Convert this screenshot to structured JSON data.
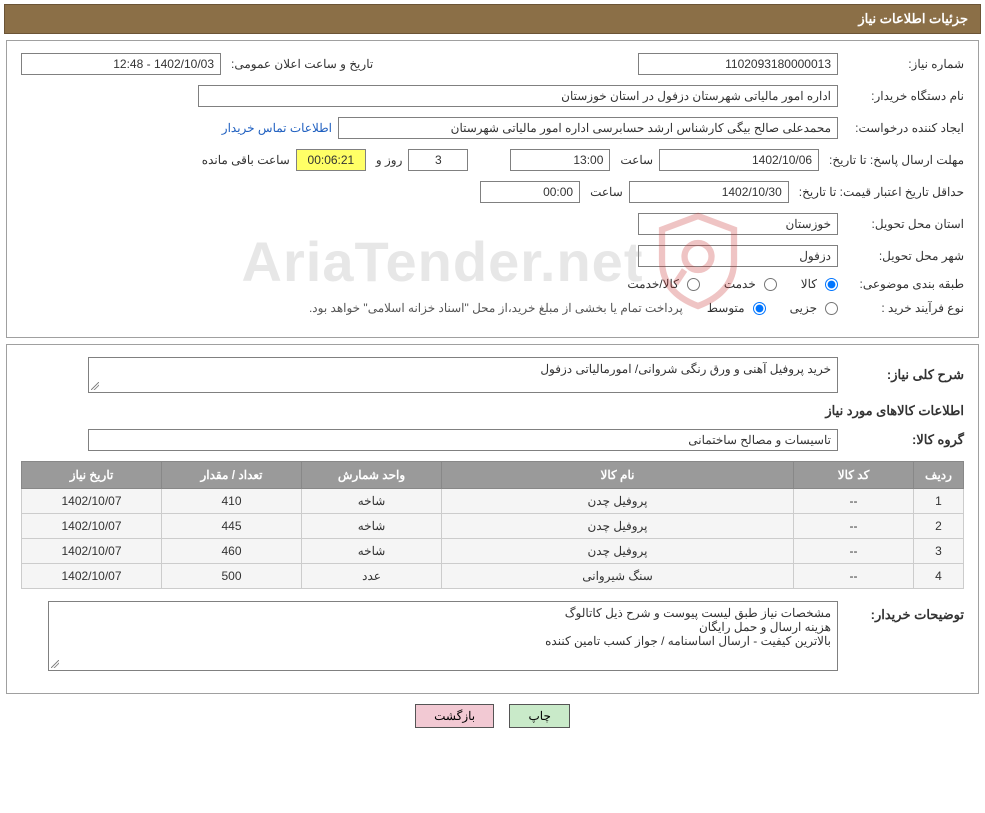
{
  "header": {
    "title": "جزئیات اطلاعات نیاز"
  },
  "info": {
    "need_no_label": "شماره نیاز:",
    "need_no": "1102093180000013",
    "announce_time_label": "تاریخ و ساعت اعلان عمومی:",
    "announce_time": "1402/10/03 - 12:48",
    "buyer_org_label": "نام دستگاه خریدار:",
    "buyer_org": "اداره امور مالیاتی شهرستان دزفول در استان خوزستان",
    "requester_label": "ایجاد کننده درخواست:",
    "requester": "محمدعلی صالح بیگی کارشناس ارشد حسابرسی اداره امور مالیاتی شهرستان",
    "contact_link": "اطلاعات تماس خریدار",
    "reply_deadline_label": "مهلت ارسال پاسخ: تا تاریخ:",
    "reply_deadline_date": "1402/10/06",
    "time_label": "ساعت",
    "reply_deadline_time": "13:00",
    "days_label": "روز و",
    "days_remaining": "3",
    "countdown": "00:06:21",
    "remaining_label": "ساعت باقی مانده",
    "price_valid_label": "حداقل تاریخ اعتبار قیمت: تا تاریخ:",
    "price_valid_date": "1402/10/30",
    "price_valid_time": "00:00",
    "province_label": "استان محل تحویل:",
    "province": "خوزستان",
    "city_label": "شهر محل تحویل:",
    "city": "دزفول",
    "category_label": "طبقه بندی موضوعی:",
    "radio_goods": "کالا",
    "radio_service": "خدمت",
    "radio_goods_service": "کالا/خدمت",
    "process_label": "نوع فرآیند خرید :",
    "radio_partial": "جزیی",
    "radio_medium": "متوسط",
    "process_note": "پرداخت تمام یا بخشی از مبلغ خرید،از محل \"اسناد خزانه اسلامی\" خواهد بود."
  },
  "desc": {
    "general_label": "شرح کلی نیاز:",
    "general_text": "خرید پروفیل آهنی و ورق رنگی شروانی/ امورمالیاتی دزفول",
    "items_info_label": "اطلاعات کالاهای مورد نیاز",
    "group_label": "گروه کالا:",
    "group_value": "تاسیسات و مصالح ساختمانی"
  },
  "table": {
    "columns": [
      "ردیف",
      "کد کالا",
      "نام کالا",
      "واحد شمارش",
      "تعداد / مقدار",
      "تاریخ نیاز"
    ],
    "rows": [
      [
        "1",
        "--",
        "پروفیل چدن",
        "شاخه",
        "410",
        "1402/10/07"
      ],
      [
        "2",
        "--",
        "پروفیل چدن",
        "شاخه",
        "445",
        "1402/10/07"
      ],
      [
        "3",
        "--",
        "پروفیل چدن",
        "شاخه",
        "460",
        "1402/10/07"
      ],
      [
        "4",
        "--",
        "سنگ شیروانی",
        "عدد",
        "500",
        "1402/10/07"
      ]
    ],
    "col_widths": [
      "50px",
      "120px",
      "auto",
      "140px",
      "140px",
      "140px"
    ]
  },
  "buyer_notes": {
    "label": "توضیحات خریدار:",
    "text": "مشخصات نیاز طبق لیست پیوست و شرح ذیل کاتالوگ\nهزینه ارسال و حمل رایگان\nبالاترین کیفیت - ارسال اساسنامه / جواز کسب تامین کننده"
  },
  "buttons": {
    "print": "چاپ",
    "back": "بازگشت"
  },
  "watermark": {
    "text": "AriaTender.net"
  }
}
